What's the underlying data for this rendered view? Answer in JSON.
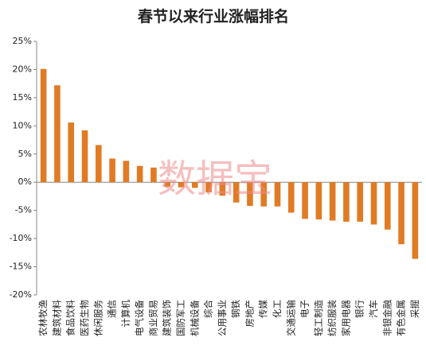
{
  "chart_data": {
    "type": "bar",
    "title": "春节以来行业涨幅排名",
    "watermark": "数据宝",
    "categories": [
      "农林牧渔",
      "建筑材料",
      "食品饮料",
      "医药生物",
      "休闲服务",
      "通信",
      "计算机",
      "电气设备",
      "商业贸易",
      "建筑装饰",
      "国防军工",
      "机械设备",
      "综合",
      "公用事业",
      "钢铁",
      "房地产",
      "传媒",
      "化工",
      "交通运输",
      "电子",
      "轻工制造",
      "纺织服装",
      "家用电器",
      "银行",
      "汽车",
      "非银金融",
      "有色金属",
      "采掘"
    ],
    "values": [
      20.1,
      17.2,
      10.6,
      9.2,
      6.6,
      4.2,
      3.8,
      2.9,
      2.6,
      -0.8,
      -0.9,
      -1.0,
      -1.8,
      -2.4,
      -3.6,
      -4.2,
      -4.3,
      -4.3,
      -5.4,
      -6.5,
      -6.6,
      -6.8,
      -7.0,
      -7.0,
      -7.5,
      -8.4,
      -11.0,
      -13.6
    ],
    "color": "#e07b24",
    "ylim": [
      -20,
      25
    ],
    "yticks": [
      {
        "value": -20,
        "label": "-20%"
      },
      {
        "value": -15,
        "label": "-15%"
      },
      {
        "value": -10,
        "label": "-10%"
      },
      {
        "value": -5,
        "label": "-5%"
      },
      {
        "value": 0,
        "label": "0%"
      },
      {
        "value": 5,
        "label": "5%"
      },
      {
        "value": 10,
        "label": "10%"
      },
      {
        "value": 15,
        "label": "15%"
      },
      {
        "value": 20,
        "label": "20%"
      },
      {
        "value": 25,
        "label": "25%"
      }
    ],
    "grid": false
  }
}
